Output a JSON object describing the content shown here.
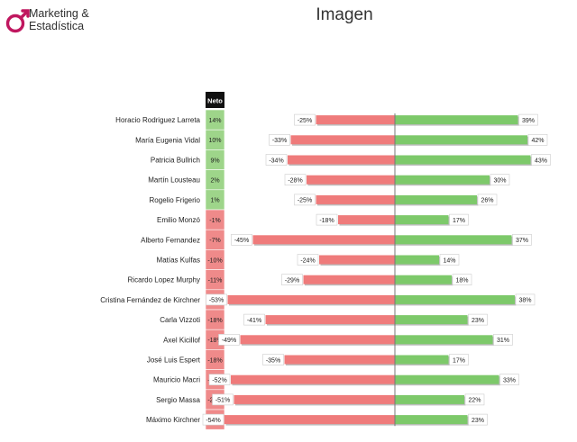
{
  "brand": {
    "line1": "Marketing &",
    "line2": "Estadística",
    "accent": "#c0175f"
  },
  "header": {
    "title": "Imagen"
  },
  "colors": {
    "positive": "#7dc96a",
    "negative": "#ef7b7b",
    "neto_positive": "#9ed58a",
    "neto_negative": "#ef8a8a"
  },
  "chart_data": {
    "type": "bar",
    "neto_header": "Neto",
    "categories": [
      "Horacio Rodriguez Larreta",
      "María Eugenia Vidal",
      "Patricia Bullrich",
      "Martín Lousteau",
      "Rogelio Frigerio",
      "Emilio Monzó",
      "Alberto Fernandez",
      "Matías Kulfas",
      "Ricardo Lopez Murphy",
      "Cristina Fernández de Kirchner",
      "Carla Vizzoti",
      "Axel Kicillof",
      "José Luis Espert",
      "Mauricio Macri",
      "Sergio Massa",
      "Máximo Kirchner"
    ],
    "neto": [
      "14%",
      "10%",
      "9%",
      "2%",
      "1%",
      "-1%",
      "-7%",
      "-10%",
      "-11%",
      "-15%",
      "-18%",
      "-18%",
      "-18%",
      "-19%",
      "-28%",
      "-31%"
    ],
    "series": [
      {
        "values": [
          -25,
          -33,
          -34,
          -28,
          -25,
          -18,
          -45,
          -24,
          -29,
          -53,
          -41,
          -49,
          -35,
          -52,
          -51,
          -54
        ]
      },
      {
        "values": [
          39,
          42,
          43,
          30,
          26,
          17,
          37,
          14,
          18,
          38,
          23,
          31,
          17,
          33,
          22,
          23
        ]
      }
    ],
    "xlim": [
      -60,
      60
    ]
  }
}
